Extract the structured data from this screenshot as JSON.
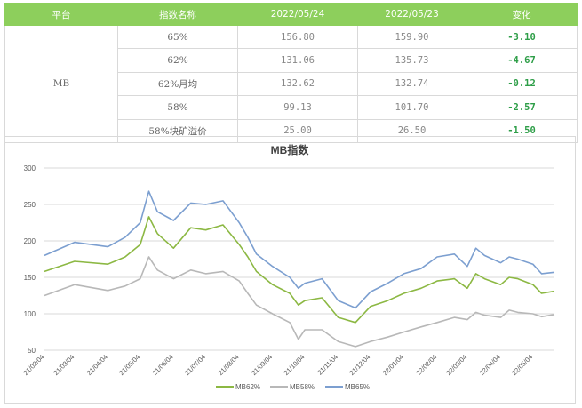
{
  "table": {
    "headers": [
      "平台",
      "指数名称",
      "2022/05/24",
      "2022/05/23",
      "变化"
    ],
    "platform": "MB",
    "rows": [
      {
        "name": "65%",
        "d1": "156.80",
        "d2": "159.90",
        "change": "-3.10"
      },
      {
        "name": "62%",
        "d1": "131.06",
        "d2": "135.73",
        "change": "-4.67"
      },
      {
        "name": "62%月均",
        "d1": "132.62",
        "d2": "132.74",
        "change": "-0.12"
      },
      {
        "name": "58%",
        "d1": "99.13",
        "d2": "101.70",
        "change": "-2.57"
      },
      {
        "name": "58%块矿溢价",
        "d1": "25.00",
        "d2": "26.50",
        "change": "-1.50"
      }
    ]
  },
  "chart_data": {
    "type": "line",
    "title": "MB指数",
    "ylim": [
      50,
      300
    ],
    "yticks": [
      50,
      100,
      150,
      200,
      250,
      300
    ],
    "grid": true,
    "legend": "bottom",
    "x_start": "2021-02-04",
    "x_end": "2022-05-24",
    "x_ticks": [
      "21/02/04",
      "21/03/04",
      "21/04/04",
      "21/05/04",
      "21/06/04",
      "21/07/04",
      "21/08/04",
      "21/09/04",
      "21/10/04",
      "21/11/04",
      "21/12/04",
      "22/01/04",
      "22/02/04",
      "22/03/04",
      "22/04/04",
      "22/05/04"
    ],
    "series": [
      {
        "name": "MB62%",
        "color": "#8cb843",
        "points": [
          [
            "21/02/04",
            158
          ],
          [
            "21/03/04",
            172
          ],
          [
            "21/04/04",
            168
          ],
          [
            "21/04/20",
            178
          ],
          [
            "21/05/04",
            195
          ],
          [
            "21/05/12",
            233
          ],
          [
            "21/05/20",
            210
          ],
          [
            "21/06/04",
            190
          ],
          [
            "21/06/20",
            218
          ],
          [
            "21/07/04",
            215
          ],
          [
            "21/07/20",
            222
          ],
          [
            "21/08/04",
            195
          ],
          [
            "21/08/12",
            178
          ],
          [
            "21/08/20",
            158
          ],
          [
            "21/09/04",
            140
          ],
          [
            "21/09/20",
            128
          ],
          [
            "21/09/28",
            112
          ],
          [
            "21/10/04",
            118
          ],
          [
            "21/10/20",
            122
          ],
          [
            "21/11/04",
            95
          ],
          [
            "21/11/20",
            88
          ],
          [
            "21/12/04",
            110
          ],
          [
            "21/12/20",
            118
          ],
          [
            "22/01/04",
            128
          ],
          [
            "22/01/20",
            135
          ],
          [
            "22/02/04",
            145
          ],
          [
            "22/02/20",
            148
          ],
          [
            "22/03/04",
            135
          ],
          [
            "22/03/12",
            155
          ],
          [
            "22/03/20",
            148
          ],
          [
            "22/04/04",
            140
          ],
          [
            "22/04/12",
            150
          ],
          [
            "22/04/20",
            148
          ],
          [
            "22/05/04",
            140
          ],
          [
            "22/05/12",
            128
          ],
          [
            "22/05/24",
            131
          ]
        ]
      },
      {
        "name": "MB58%",
        "color": "#b8b8b8",
        "points": [
          [
            "21/02/04",
            125
          ],
          [
            "21/03/04",
            140
          ],
          [
            "21/04/04",
            132
          ],
          [
            "21/04/20",
            138
          ],
          [
            "21/05/04",
            148
          ],
          [
            "21/05/12",
            178
          ],
          [
            "21/05/20",
            160
          ],
          [
            "21/06/04",
            148
          ],
          [
            "21/06/20",
            160
          ],
          [
            "21/07/04",
            155
          ],
          [
            "21/07/20",
            158
          ],
          [
            "21/08/04",
            145
          ],
          [
            "21/08/12",
            128
          ],
          [
            "21/08/20",
            112
          ],
          [
            "21/09/04",
            100
          ],
          [
            "21/09/20",
            88
          ],
          [
            "21/09/28",
            65
          ],
          [
            "21/10/04",
            78
          ],
          [
            "21/10/20",
            78
          ],
          [
            "21/11/04",
            62
          ],
          [
            "21/11/20",
            55
          ],
          [
            "21/12/04",
            62
          ],
          [
            "21/12/20",
            68
          ],
          [
            "22/01/04",
            75
          ],
          [
            "22/01/20",
            82
          ],
          [
            "22/02/04",
            88
          ],
          [
            "22/02/20",
            95
          ],
          [
            "22/03/04",
            92
          ],
          [
            "22/03/12",
            102
          ],
          [
            "22/03/20",
            98
          ],
          [
            "22/04/04",
            95
          ],
          [
            "22/04/12",
            105
          ],
          [
            "22/04/20",
            102
          ],
          [
            "22/05/04",
            100
          ],
          [
            "22/05/12",
            96
          ],
          [
            "22/05/24",
            99
          ]
        ]
      },
      {
        "name": "MB65%",
        "color": "#7c9fd0",
        "points": [
          [
            "21/02/04",
            180
          ],
          [
            "21/03/04",
            198
          ],
          [
            "21/04/04",
            192
          ],
          [
            "21/04/20",
            205
          ],
          [
            "21/05/04",
            225
          ],
          [
            "21/05/12",
            268
          ],
          [
            "21/05/20",
            240
          ],
          [
            "21/06/04",
            228
          ],
          [
            "21/06/20",
            252
          ],
          [
            "21/07/04",
            250
          ],
          [
            "21/07/20",
            255
          ],
          [
            "21/08/04",
            225
          ],
          [
            "21/08/12",
            205
          ],
          [
            "21/08/20",
            182
          ],
          [
            "21/09/04",
            165
          ],
          [
            "21/09/20",
            150
          ],
          [
            "21/09/28",
            135
          ],
          [
            "21/10/04",
            142
          ],
          [
            "21/10/20",
            148
          ],
          [
            "21/11/04",
            118
          ],
          [
            "21/11/20",
            108
          ],
          [
            "21/12/04",
            130
          ],
          [
            "21/12/20",
            142
          ],
          [
            "22/01/04",
            155
          ],
          [
            "22/01/20",
            162
          ],
          [
            "22/02/04",
            178
          ],
          [
            "22/02/20",
            182
          ],
          [
            "22/03/04",
            165
          ],
          [
            "22/03/12",
            190
          ],
          [
            "22/03/20",
            180
          ],
          [
            "22/04/04",
            170
          ],
          [
            "22/04/12",
            178
          ],
          [
            "22/04/20",
            175
          ],
          [
            "22/05/04",
            168
          ],
          [
            "22/05/12",
            155
          ],
          [
            "22/05/24",
            157
          ]
        ]
      }
    ]
  }
}
